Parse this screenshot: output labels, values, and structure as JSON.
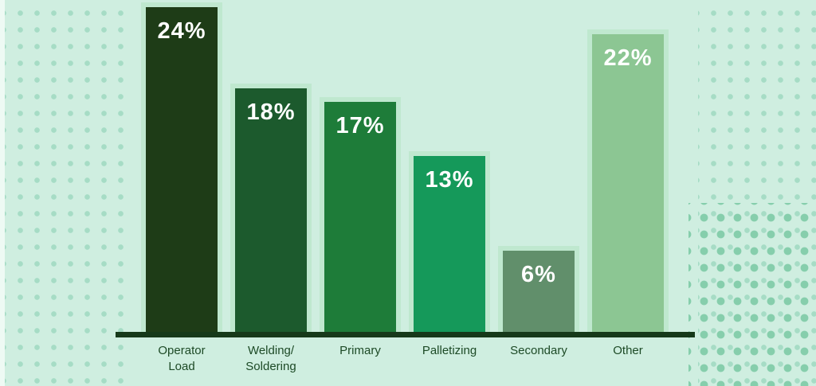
{
  "chart_data": {
    "type": "bar",
    "title": "",
    "xlabel": "",
    "ylabel": "",
    "unit": "%",
    "categories": [
      "Operator\nLoad",
      "Welding/\nSoldering",
      "Primary",
      "Palletizing",
      "Secondary",
      "Other"
    ],
    "values": [
      24,
      18,
      17,
      13,
      6,
      22
    ],
    "value_labels": [
      "24%",
      "18%",
      "17%",
      "13%",
      "6%",
      "22%"
    ],
    "ylim": [
      0,
      25
    ],
    "grid": false,
    "legend": false,
    "colors": {
      "background": "#cfeee0",
      "bars": [
        "#1e3c17",
        "#1c5a2d",
        "#1e7c39",
        "#15995a",
        "#618f6b",
        "#8cc693"
      ],
      "bar_highlight": "#bfe8cf",
      "axis": "#16391a",
      "category_label": "#1d4a26",
      "value_label": "#ffffff",
      "dots": "#a6dcc5",
      "dots_dark": "#79c8a3"
    }
  }
}
